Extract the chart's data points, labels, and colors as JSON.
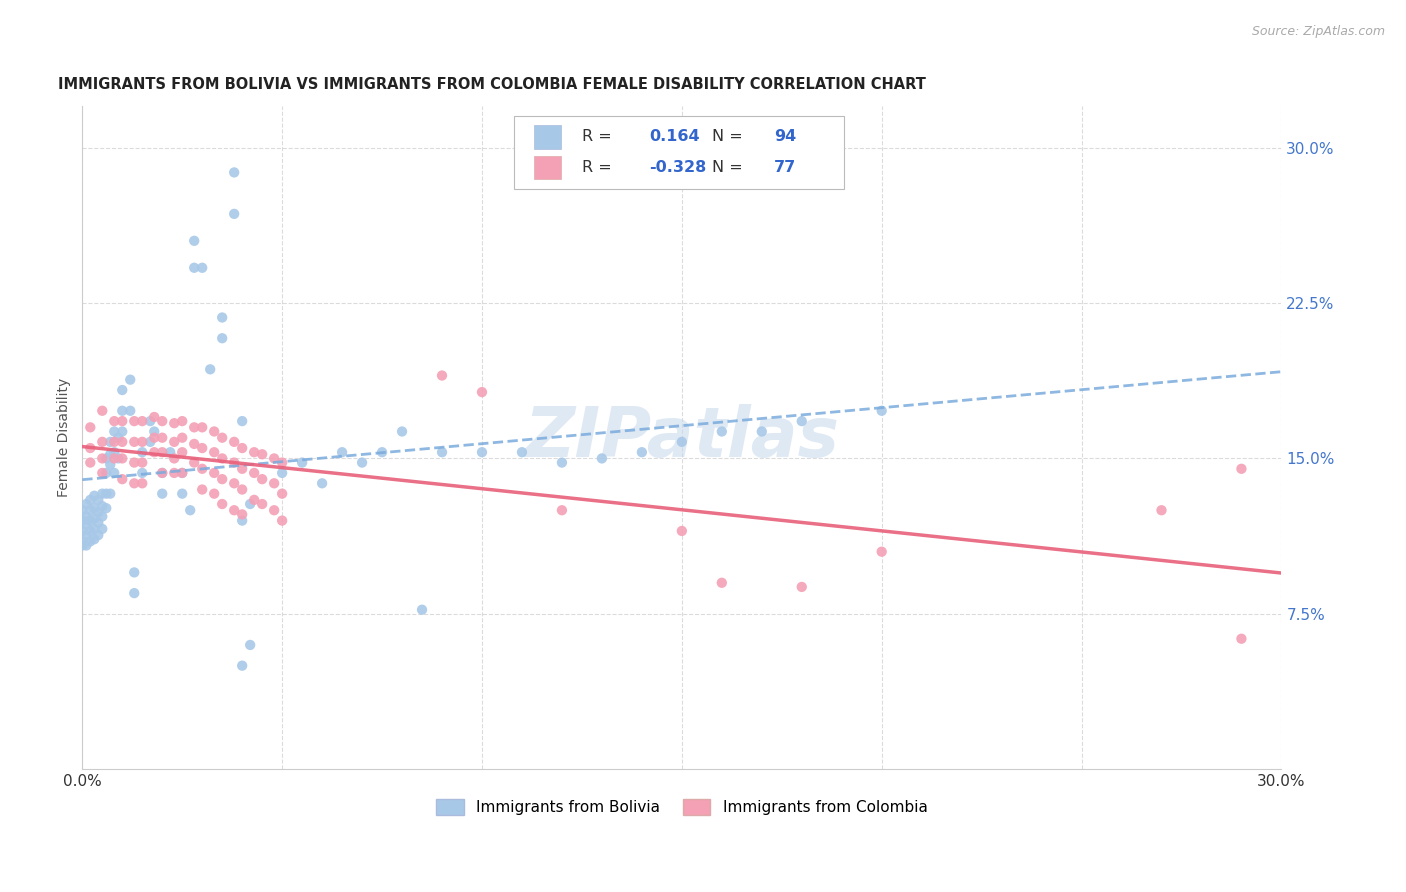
{
  "title": "IMMIGRANTS FROM BOLIVIA VS IMMIGRANTS FROM COLOMBIA FEMALE DISABILITY CORRELATION CHART",
  "source": "Source: ZipAtlas.com",
  "ylabel": "Female Disability",
  "xlim": [
    0.0,
    0.3
  ],
  "ylim": [
    0.0,
    0.32
  ],
  "bolivia_color": "#a8c8e8",
  "colombia_color": "#f4a0b5",
  "bolivia_line_color": "#7aabdc",
  "colombia_line_color": "#e8607a",
  "bolivia_R": 0.164,
  "bolivia_N": 94,
  "colombia_R": -0.328,
  "colombia_N": 77,
  "legend_label_bolivia": "Immigrants from Bolivia",
  "legend_label_colombia": "Immigrants from Colombia",
  "watermark": "ZIPatlas",
  "background_color": "#ffffff",
  "grid_color": "#cccccc",
  "ytick_values": [
    0.075,
    0.15,
    0.225,
    0.3
  ],
  "ytick_labels": [
    "7.5%",
    "15.0%",
    "22.5%",
    "30.0%"
  ],
  "bolivia_scatter": [
    [
      0.0,
      0.125
    ],
    [
      0.0,
      0.12
    ],
    [
      0.0,
      0.115
    ],
    [
      0.0,
      0.11
    ],
    [
      0.0,
      0.108
    ],
    [
      0.001,
      0.128
    ],
    [
      0.001,
      0.122
    ],
    [
      0.001,
      0.118
    ],
    [
      0.001,
      0.113
    ],
    [
      0.001,
      0.108
    ],
    [
      0.002,
      0.13
    ],
    [
      0.002,
      0.125
    ],
    [
      0.002,
      0.12
    ],
    [
      0.002,
      0.115
    ],
    [
      0.002,
      0.11
    ],
    [
      0.003,
      0.132
    ],
    [
      0.003,
      0.126
    ],
    [
      0.003,
      0.121
    ],
    [
      0.003,
      0.116
    ],
    [
      0.003,
      0.111
    ],
    [
      0.004,
      0.13
    ],
    [
      0.004,
      0.124
    ],
    [
      0.004,
      0.119
    ],
    [
      0.004,
      0.113
    ],
    [
      0.005,
      0.133
    ],
    [
      0.005,
      0.127
    ],
    [
      0.005,
      0.122
    ],
    [
      0.005,
      0.116
    ],
    [
      0.006,
      0.15
    ],
    [
      0.006,
      0.143
    ],
    [
      0.006,
      0.133
    ],
    [
      0.006,
      0.126
    ],
    [
      0.007,
      0.158
    ],
    [
      0.007,
      0.152
    ],
    [
      0.007,
      0.147
    ],
    [
      0.007,
      0.133
    ],
    [
      0.008,
      0.163
    ],
    [
      0.008,
      0.153
    ],
    [
      0.008,
      0.143
    ],
    [
      0.009,
      0.16
    ],
    [
      0.009,
      0.15
    ],
    [
      0.01,
      0.183
    ],
    [
      0.01,
      0.173
    ],
    [
      0.01,
      0.163
    ],
    [
      0.012,
      0.188
    ],
    [
      0.012,
      0.173
    ],
    [
      0.013,
      0.095
    ],
    [
      0.013,
      0.085
    ],
    [
      0.015,
      0.153
    ],
    [
      0.015,
      0.143
    ],
    [
      0.017,
      0.168
    ],
    [
      0.017,
      0.158
    ],
    [
      0.018,
      0.163
    ],
    [
      0.02,
      0.143
    ],
    [
      0.02,
      0.133
    ],
    [
      0.022,
      0.153
    ],
    [
      0.025,
      0.143
    ],
    [
      0.025,
      0.133
    ],
    [
      0.027,
      0.125
    ],
    [
      0.028,
      0.255
    ],
    [
      0.028,
      0.242
    ],
    [
      0.03,
      0.242
    ],
    [
      0.032,
      0.193
    ],
    [
      0.035,
      0.218
    ],
    [
      0.035,
      0.208
    ],
    [
      0.038,
      0.288
    ],
    [
      0.038,
      0.268
    ],
    [
      0.04,
      0.168
    ],
    [
      0.04,
      0.12
    ],
    [
      0.042,
      0.128
    ],
    [
      0.042,
      0.06
    ],
    [
      0.05,
      0.143
    ],
    [
      0.055,
      0.148
    ],
    [
      0.06,
      0.138
    ],
    [
      0.065,
      0.153
    ],
    [
      0.07,
      0.148
    ],
    [
      0.075,
      0.153
    ],
    [
      0.08,
      0.163
    ],
    [
      0.085,
      0.077
    ],
    [
      0.09,
      0.153
    ],
    [
      0.1,
      0.153
    ],
    [
      0.11,
      0.153
    ],
    [
      0.12,
      0.148
    ],
    [
      0.13,
      0.15
    ],
    [
      0.14,
      0.153
    ],
    [
      0.15,
      0.158
    ],
    [
      0.16,
      0.163
    ],
    [
      0.17,
      0.163
    ],
    [
      0.18,
      0.168
    ],
    [
      0.2,
      0.173
    ],
    [
      0.04,
      0.05
    ]
  ],
  "colombia_scatter": [
    [
      0.002,
      0.165
    ],
    [
      0.002,
      0.155
    ],
    [
      0.002,
      0.148
    ],
    [
      0.005,
      0.173
    ],
    [
      0.005,
      0.158
    ],
    [
      0.005,
      0.15
    ],
    [
      0.005,
      0.143
    ],
    [
      0.008,
      0.168
    ],
    [
      0.008,
      0.158
    ],
    [
      0.008,
      0.15
    ],
    [
      0.01,
      0.168
    ],
    [
      0.01,
      0.158
    ],
    [
      0.01,
      0.15
    ],
    [
      0.01,
      0.14
    ],
    [
      0.013,
      0.168
    ],
    [
      0.013,
      0.158
    ],
    [
      0.013,
      0.148
    ],
    [
      0.013,
      0.138
    ],
    [
      0.015,
      0.168
    ],
    [
      0.015,
      0.158
    ],
    [
      0.015,
      0.148
    ],
    [
      0.015,
      0.138
    ],
    [
      0.018,
      0.17
    ],
    [
      0.018,
      0.16
    ],
    [
      0.018,
      0.153
    ],
    [
      0.02,
      0.168
    ],
    [
      0.02,
      0.16
    ],
    [
      0.02,
      0.153
    ],
    [
      0.02,
      0.143
    ],
    [
      0.023,
      0.167
    ],
    [
      0.023,
      0.158
    ],
    [
      0.023,
      0.15
    ],
    [
      0.023,
      0.143
    ],
    [
      0.025,
      0.168
    ],
    [
      0.025,
      0.16
    ],
    [
      0.025,
      0.153
    ],
    [
      0.025,
      0.143
    ],
    [
      0.028,
      0.165
    ],
    [
      0.028,
      0.157
    ],
    [
      0.028,
      0.148
    ],
    [
      0.03,
      0.165
    ],
    [
      0.03,
      0.155
    ],
    [
      0.03,
      0.145
    ],
    [
      0.03,
      0.135
    ],
    [
      0.033,
      0.163
    ],
    [
      0.033,
      0.153
    ],
    [
      0.033,
      0.143
    ],
    [
      0.033,
      0.133
    ],
    [
      0.035,
      0.16
    ],
    [
      0.035,
      0.15
    ],
    [
      0.035,
      0.14
    ],
    [
      0.035,
      0.128
    ],
    [
      0.038,
      0.158
    ],
    [
      0.038,
      0.148
    ],
    [
      0.038,
      0.138
    ],
    [
      0.038,
      0.125
    ],
    [
      0.04,
      0.155
    ],
    [
      0.04,
      0.145
    ],
    [
      0.04,
      0.135
    ],
    [
      0.04,
      0.123
    ],
    [
      0.043,
      0.153
    ],
    [
      0.043,
      0.143
    ],
    [
      0.043,
      0.13
    ],
    [
      0.045,
      0.152
    ],
    [
      0.045,
      0.14
    ],
    [
      0.045,
      0.128
    ],
    [
      0.048,
      0.15
    ],
    [
      0.048,
      0.138
    ],
    [
      0.048,
      0.125
    ],
    [
      0.05,
      0.148
    ],
    [
      0.05,
      0.133
    ],
    [
      0.05,
      0.12
    ],
    [
      0.09,
      0.19
    ],
    [
      0.1,
      0.182
    ],
    [
      0.12,
      0.125
    ],
    [
      0.15,
      0.115
    ],
    [
      0.16,
      0.09
    ],
    [
      0.18,
      0.088
    ],
    [
      0.2,
      0.105
    ],
    [
      0.27,
      0.125
    ],
    [
      0.29,
      0.145
    ],
    [
      0.29,
      0.063
    ]
  ]
}
